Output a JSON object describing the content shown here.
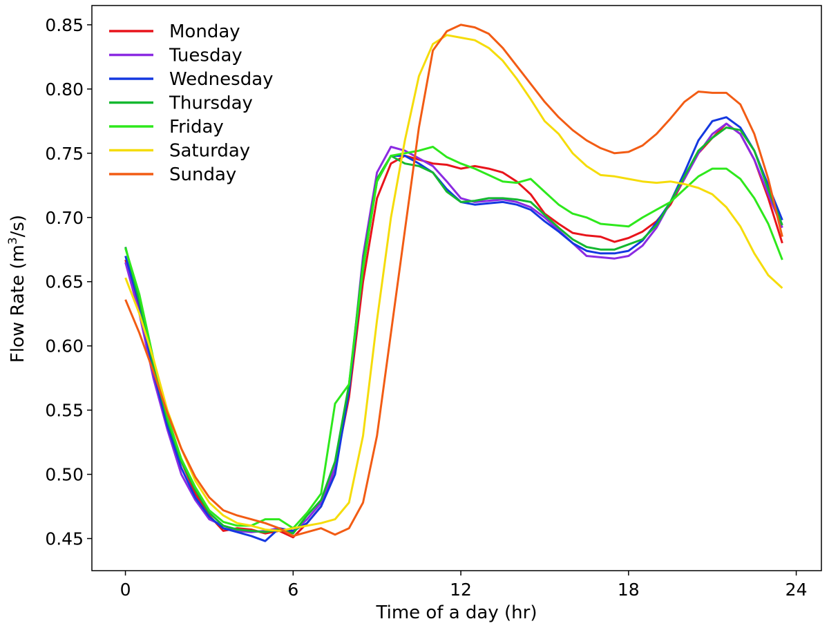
{
  "chart_data": {
    "type": "line",
    "title": "",
    "xlabel": "Time of a day (hr)",
    "ylabel_main": "Flow Rate (m",
    "ylabel_sup": "3",
    "ylabel_tail": "/s)",
    "xlim": [
      -1.2,
      24.9
    ],
    "ylim": [
      0.425,
      0.865
    ],
    "xticks": [
      0,
      6,
      12,
      18,
      24
    ],
    "xtick_labels": [
      "0",
      "6",
      "12",
      "18",
      "24"
    ],
    "yticks": [
      0.45,
      0.5,
      0.55,
      0.6,
      0.65,
      0.7,
      0.75,
      0.8,
      0.85
    ],
    "ytick_labels": [
      "0.45",
      "0.50",
      "0.55",
      "0.60",
      "0.65",
      "0.70",
      "0.75",
      "0.80",
      "0.85"
    ],
    "legend_position": "top-left",
    "grid": false,
    "x": [
      0,
      0.5,
      1,
      1.5,
      2,
      2.5,
      3,
      3.5,
      4,
      4.5,
      5,
      5.5,
      6,
      6.5,
      7,
      7.5,
      8,
      8.5,
      9,
      9.5,
      10,
      10.5,
      11,
      11.5,
      12,
      12.5,
      13,
      13.5,
      14,
      14.5,
      15,
      15.5,
      16,
      16.5,
      17,
      17.5,
      18,
      18.5,
      19,
      19.5,
      20,
      20.5,
      21,
      21.5,
      22,
      22.5,
      23,
      23.5
    ],
    "series": [
      {
        "name": "Monday",
        "color": "#e8141b",
        "values": [
          0.667,
          0.63,
          0.58,
          0.54,
          0.51,
          0.485,
          0.468,
          0.456,
          0.458,
          0.457,
          0.454,
          0.456,
          0.451,
          0.462,
          0.475,
          0.505,
          0.56,
          0.65,
          0.715,
          0.742,
          0.748,
          0.745,
          0.742,
          0.741,
          0.738,
          0.74,
          0.738,
          0.735,
          0.728,
          0.718,
          0.703,
          0.695,
          0.688,
          0.686,
          0.685,
          0.681,
          0.684,
          0.689,
          0.697,
          0.71,
          0.73,
          0.75,
          0.762,
          0.773,
          0.765,
          0.745,
          0.715,
          0.68
        ]
      },
      {
        "name": "Tuesday",
        "color": "#8b2be2",
        "values": [
          0.665,
          0.625,
          0.575,
          0.535,
          0.5,
          0.48,
          0.465,
          0.46,
          0.456,
          0.455,
          0.456,
          0.458,
          0.455,
          0.465,
          0.478,
          0.505,
          0.565,
          0.67,
          0.735,
          0.755,
          0.752,
          0.746,
          0.74,
          0.728,
          0.715,
          0.712,
          0.713,
          0.714,
          0.712,
          0.708,
          0.7,
          0.69,
          0.68,
          0.67,
          0.669,
          0.668,
          0.67,
          0.678,
          0.692,
          0.712,
          0.73,
          0.75,
          0.765,
          0.773,
          0.765,
          0.745,
          0.718,
          0.692
        ]
      },
      {
        "name": "Wednesday",
        "color": "#1438e0",
        "values": [
          0.67,
          0.632,
          0.58,
          0.538,
          0.505,
          0.482,
          0.467,
          0.458,
          0.455,
          0.452,
          0.448,
          0.458,
          0.456,
          0.462,
          0.475,
          0.5,
          0.565,
          0.66,
          0.728,
          0.748,
          0.748,
          0.742,
          0.735,
          0.722,
          0.712,
          0.71,
          0.711,
          0.712,
          0.71,
          0.706,
          0.697,
          0.689,
          0.68,
          0.674,
          0.672,
          0.672,
          0.674,
          0.682,
          0.696,
          0.712,
          0.735,
          0.76,
          0.775,
          0.778,
          0.77,
          0.752,
          0.725,
          0.698
        ]
      },
      {
        "name": "Thursday",
        "color": "#14b830",
        "values": [
          0.677,
          0.635,
          0.585,
          0.542,
          0.51,
          0.488,
          0.47,
          0.46,
          0.457,
          0.456,
          0.455,
          0.457,
          0.454,
          0.468,
          0.48,
          0.51,
          0.57,
          0.665,
          0.73,
          0.748,
          0.742,
          0.74,
          0.735,
          0.72,
          0.712,
          0.713,
          0.715,
          0.715,
          0.714,
          0.712,
          0.702,
          0.692,
          0.683,
          0.677,
          0.675,
          0.675,
          0.679,
          0.683,
          0.694,
          0.712,
          0.732,
          0.752,
          0.762,
          0.77,
          0.768,
          0.752,
          0.722,
          0.694
        ]
      },
      {
        "name": "Friday",
        "color": "#2ee81c",
        "values": [
          0.676,
          0.64,
          0.59,
          0.545,
          0.512,
          0.49,
          0.472,
          0.463,
          0.46,
          0.46,
          0.465,
          0.465,
          0.458,
          0.47,
          0.485,
          0.555,
          0.57,
          0.66,
          0.728,
          0.748,
          0.75,
          0.752,
          0.755,
          0.747,
          0.742,
          0.738,
          0.733,
          0.728,
          0.727,
          0.73,
          0.72,
          0.71,
          0.703,
          0.7,
          0.695,
          0.694,
          0.693,
          0.7,
          0.706,
          0.712,
          0.722,
          0.732,
          0.738,
          0.738,
          0.73,
          0.715,
          0.695,
          0.667
        ]
      },
      {
        "name": "Saturday",
        "color": "#f5dc0a",
        "values": [
          0.653,
          0.625,
          0.59,
          0.55,
          0.52,
          0.495,
          0.478,
          0.468,
          0.462,
          0.46,
          0.457,
          0.456,
          0.458,
          0.46,
          0.462,
          0.465,
          0.478,
          0.53,
          0.62,
          0.7,
          0.76,
          0.81,
          0.835,
          0.842,
          0.84,
          0.838,
          0.832,
          0.822,
          0.808,
          0.792,
          0.775,
          0.765,
          0.75,
          0.74,
          0.733,
          0.732,
          0.73,
          0.728,
          0.727,
          0.728,
          0.726,
          0.723,
          0.718,
          0.708,
          0.693,
          0.672,
          0.655,
          0.645
        ]
      },
      {
        "name": "Sunday",
        "color": "#f25c14",
        "values": [
          0.636,
          0.61,
          0.58,
          0.548,
          0.52,
          0.498,
          0.482,
          0.472,
          0.468,
          0.465,
          0.462,
          0.458,
          0.452,
          0.455,
          0.458,
          0.453,
          0.458,
          0.478,
          0.53,
          0.61,
          0.69,
          0.77,
          0.83,
          0.845,
          0.85,
          0.848,
          0.843,
          0.832,
          0.818,
          0.804,
          0.79,
          0.778,
          0.768,
          0.76,
          0.754,
          0.75,
          0.751,
          0.756,
          0.765,
          0.777,
          0.79,
          0.798,
          0.797,
          0.797,
          0.788,
          0.765,
          0.73,
          0.685
        ]
      }
    ]
  }
}
